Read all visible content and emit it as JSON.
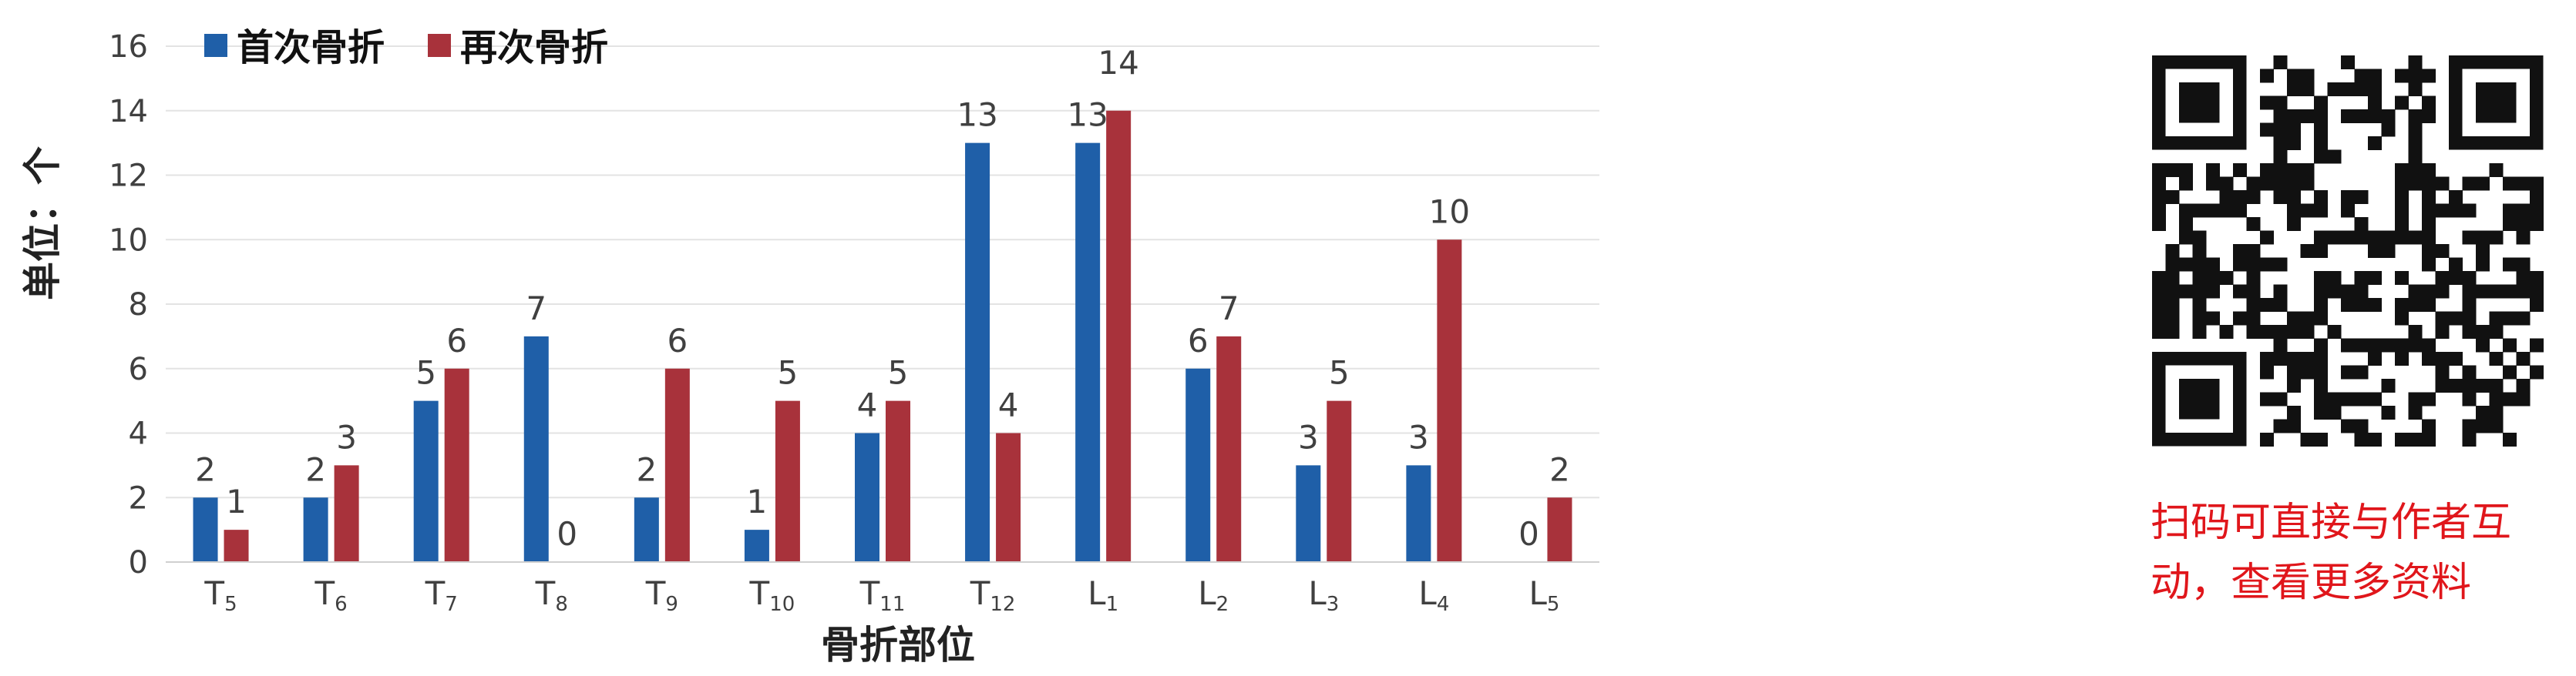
{
  "chart_data": {
    "type": "bar",
    "categories": [
      "T",
      "T",
      "T",
      "T",
      "T",
      "T",
      "T",
      "T",
      "L",
      "L",
      "L",
      "L",
      "L"
    ],
    "category_subscripts": [
      "5",
      "6",
      "7",
      "8",
      "9",
      "10",
      "11",
      "12",
      "1",
      "2",
      "3",
      "4",
      "5"
    ],
    "series": [
      {
        "name": "首次骨折",
        "color": "#1f5fa8",
        "values": [
          2,
          2,
          5,
          7,
          2,
          1,
          4,
          13,
          13,
          6,
          3,
          3,
          0
        ]
      },
      {
        "name": "再次骨折",
        "color": "#a8323b",
        "values": [
          1,
          3,
          6,
          0,
          6,
          5,
          5,
          4,
          14,
          7,
          5,
          10,
          2
        ]
      }
    ],
    "xlabel": "骨折部位",
    "ylabel": "单位：个",
    "ylim": [
      0,
      16
    ],
    "yticks": [
      0,
      2,
      4,
      6,
      8,
      10,
      12,
      14,
      16
    ],
    "grid": true,
    "legend_position": "top-left"
  },
  "qr": {
    "icon": "qr-code-icon",
    "caption_line1": "扫码可直接与作者互",
    "caption_line2": "动，查看更多资料",
    "caption_color": "#e0161b"
  }
}
